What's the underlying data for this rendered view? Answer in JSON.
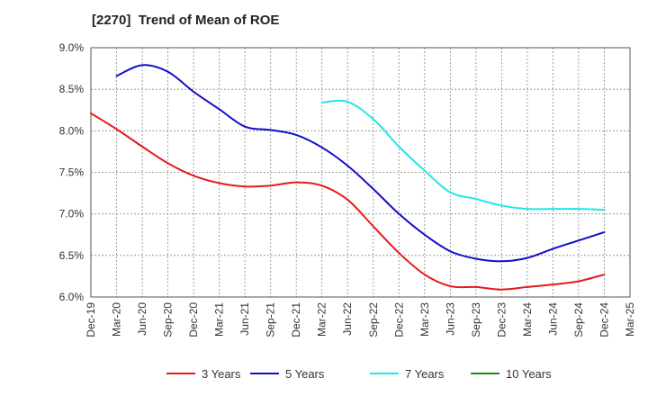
{
  "chart_data": {
    "type": "line",
    "title": "[2270]  Trend of Mean of ROE",
    "x_ticks": [
      "Dec-19",
      "Mar-20",
      "Jun-20",
      "Sep-20",
      "Dec-20",
      "Mar-21",
      "Jun-21",
      "Sep-21",
      "Dec-21",
      "Mar-22",
      "Jun-22",
      "Sep-22",
      "Dec-22",
      "Mar-23",
      "Jun-23",
      "Sep-23",
      "Dec-23",
      "Mar-24",
      "Jun-24",
      "Sep-24",
      "Dec-24",
      "Mar-25"
    ],
    "y_ticks": [
      "6.0%",
      "6.5%",
      "7.0%",
      "7.5%",
      "8.0%",
      "8.5%",
      "9.0%"
    ],
    "ylim": [
      6.0,
      9.0
    ],
    "y_unit": "%",
    "grid": true,
    "legend_position": "bottom",
    "series": [
      {
        "name": "3 Years",
        "color": "#e31a1c",
        "values": [
          8.21,
          8.02,
          7.81,
          7.61,
          7.46,
          7.37,
          7.33,
          7.34,
          7.38,
          7.34,
          7.17,
          6.85,
          6.53,
          6.27,
          6.13,
          6.12,
          6.09,
          6.12,
          6.15,
          6.19,
          6.27,
          null
        ]
      },
      {
        "name": "5 Years",
        "color": "#1010c8",
        "values": [
          null,
          8.66,
          8.79,
          8.71,
          8.47,
          8.26,
          8.05,
          8.01,
          7.95,
          7.8,
          7.58,
          7.3,
          7.0,
          6.75,
          6.55,
          6.46,
          6.43,
          6.47,
          6.58,
          6.68,
          6.78,
          null
        ]
      },
      {
        "name": "7 Years",
        "color": "#22e5e5",
        "values": [
          null,
          null,
          null,
          null,
          null,
          null,
          null,
          null,
          null,
          8.34,
          8.35,
          8.14,
          7.81,
          7.52,
          7.26,
          7.18,
          7.1,
          7.06,
          7.06,
          7.06,
          7.05,
          null
        ]
      },
      {
        "name": "10 Years",
        "color": "#1a8a1a",
        "values": [
          null,
          null,
          null,
          null,
          null,
          null,
          null,
          null,
          null,
          null,
          null,
          null,
          null,
          null,
          null,
          null,
          null,
          null,
          null,
          null,
          null,
          null
        ]
      }
    ]
  }
}
